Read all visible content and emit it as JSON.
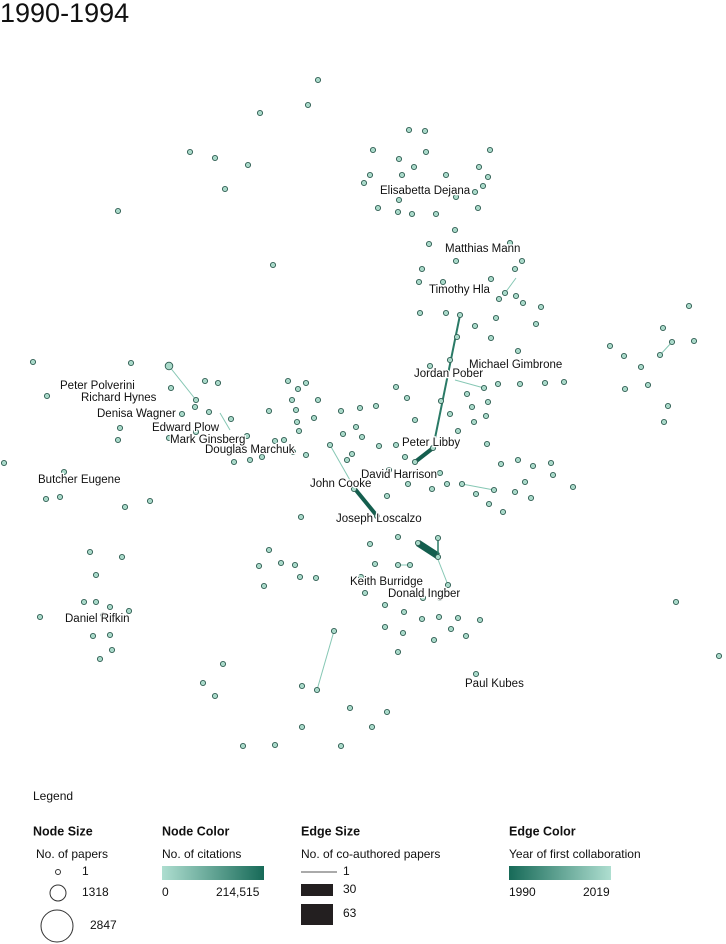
{
  "title": "1990-1994",
  "labels": [
    "Elisabetta Dejana",
    "Matthias Mann",
    "Timothy Hla",
    "Michael Gimbrone",
    "Jordan Pober",
    "Peter Polverini",
    "Richard Hynes",
    "Denisa Wagner",
    "Edward Plow",
    "Mark Ginsberg",
    "Douglas Marchuk",
    "Peter Libby",
    "David Harrison",
    "Butcher Eugene",
    "John Cooke",
    "Joseph Loscalzo",
    "Keith Burridge",
    "Donald Ingber",
    "Daniel Rifkin",
    "Paul Kubes"
  ],
  "legend": {
    "title": "Legend",
    "node_size": {
      "title": "Node Size",
      "subtitle": "No. of papers",
      "items": [
        "1",
        "1318",
        "2847"
      ]
    },
    "node_color": {
      "title": "Node Color",
      "subtitle": "No. of citations",
      "min": "0",
      "max": "214,515"
    },
    "edge_size": {
      "title": "Edge Size",
      "subtitle": "No. of co-authored papers",
      "items": [
        "1",
        "30",
        "63"
      ]
    },
    "edge_color": {
      "title": "Edge Color",
      "subtitle": "Year of first collaboration",
      "min": "1990",
      "max": "2019"
    }
  }
}
